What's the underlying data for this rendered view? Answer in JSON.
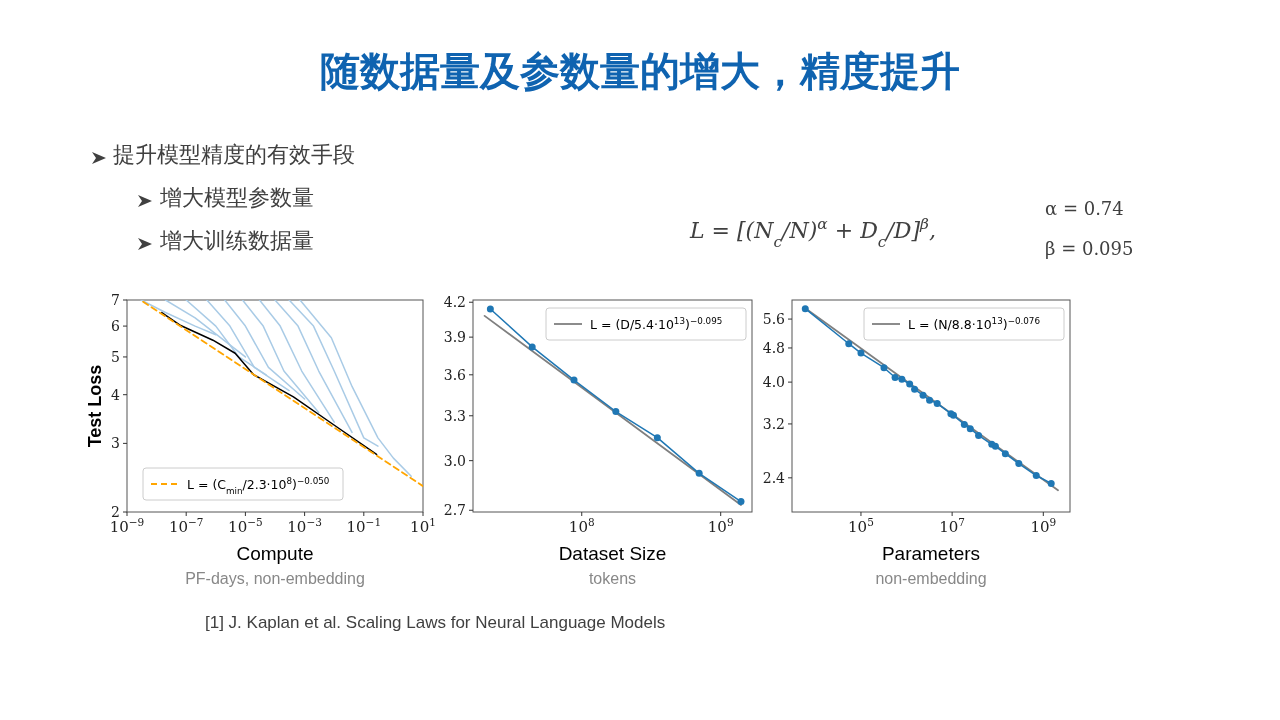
{
  "chart_data": [
    {
      "type": "line",
      "title": "随数据量及参数量的增大，精度提升",
      "annotations": [
        "提升模型精度的有效手段",
        "增大模型参数量",
        "增大训练数据量",
        "L = [(N$_{c}$/N)$^{α}$ + D$_{c}$/D]$^{β}$,",
        "α = 0.74",
        "β = 0.095",
        "[1] J. Kaplan et al. Scaling Laws for Neural Language Models"
      ],
      "xlabel": "Compute\nPF-days, non-embedding",
      "ylabel": "Test Loss",
      "log": "xy",
      "legend": "bottom left",
      "xlim": [
        1e-09,
        10
      ],
      "ylim": [
        2,
        7
      ],
      "xticks": [
        {
          "value": 1e-09,
          "label": "10$^{−9}$"
        },
        {
          "value": 1e-07,
          "label": "10$^{−7}$"
        },
        {
          "value": 1e-05,
          "label": "10$^{−5}$"
        },
        {
          "value": 0.001,
          "label": "10$^{−3}$"
        },
        {
          "value": 0.1,
          "label": "10$^{−1}$"
        },
        {
          "value": 10,
          "label": "10$^{1}$"
        }
      ],
      "yticks": [
        2,
        3,
        4,
        5,
        6,
        7
      ],
      "series": [
        {
          "color": "#a9cbe6",
          "x": [
            3e-09,
            2e-08,
            2e-07,
            1e-06
          ],
          "values": [
            7,
            6.5,
            6.0,
            5.7
          ]
        },
        {
          "color": "#a9cbe6",
          "x": [
            2e-08,
            2e-07,
            2e-06,
            1e-05
          ],
          "values": [
            7,
            6.3,
            5.5,
            5.0
          ]
        },
        {
          "color": "#a9cbe6",
          "x": [
            1e-07,
            1e-06,
            6e-06,
            5e-05
          ],
          "values": [
            7,
            6.0,
            5.0,
            4.5
          ]
        },
        {
          "color": "#a9cbe6",
          "x": [
            5e-07,
            3e-06,
            2e-05,
            0.0003
          ],
          "values": [
            7,
            6.0,
            4.7,
            4.1
          ]
        },
        {
          "color": "#a9cbe6",
          "x": [
            2e-06,
            1e-05,
            6e-05,
            0.001
          ],
          "values": [
            7,
            6.0,
            4.7,
            3.9
          ]
        },
        {
          "color": "#a9cbe6",
          "x": [
            8e-06,
            4e-05,
            0.0002,
            0.003
          ],
          "values": [
            7,
            6.0,
            4.6,
            3.6
          ]
        },
        {
          "color": "#a9cbe6",
          "x": [
            3e-05,
            0.00015,
            0.0008,
            0.01
          ],
          "values": [
            7,
            6.0,
            4.6,
            3.4
          ]
        },
        {
          "color": "#a9cbe6",
          "x": [
            0.0001,
            0.0006,
            0.003,
            0.04
          ],
          "values": [
            7,
            6.0,
            4.6,
            3.2
          ]
        },
        {
          "color": "#a9cbe6",
          "x": [
            0.0003,
            0.002,
            0.01,
            0.1,
            0.3
          ],
          "values": [
            7,
            6.0,
            4.6,
            3.1,
            2.95
          ]
        },
        {
          "color": "#a9cbe6",
          "x": [
            0.0007,
            0.008,
            0.04,
            0.3,
            1,
            4
          ],
          "values": [
            7,
            5.6,
            4.2,
            3.1,
            2.75,
            2.47
          ]
        },
        {
          "color": "#000000",
          "x": [
            1.5e-08,
            6e-08,
            8e-07,
            4.5e-06,
            1.9e-05,
            0.00042,
            0.012,
            0.27
          ],
          "values": [
            6.5,
            6.04,
            5.52,
            5.11,
            4.5,
            3.95,
            3.31,
            2.81
          ]
        },
        {
          "name": "L = (C$_{min}$/2.3·10$^{8}$)$^{−0.050}$",
          "color": "#ffa500",
          "line_style": "dashed",
          "x": [
            3.5e-09,
            10
          ],
          "values": [
            6.93,
            2.33
          ]
        }
      ]
    },
    {
      "type": "line",
      "xlabel": "Dataset Size\ntokens",
      "log": "xy",
      "legend": "top right",
      "marker": "circle",
      "xlim": [
        16500000.0,
        1680000000.0
      ],
      "ylim": [
        2.69,
        4.22
      ],
      "xticks": [
        {
          "value": 100000000.0,
          "label": "10$^{8}$"
        },
        {
          "value": 1000000000.0,
          "label": "10$^{9}$"
        }
      ],
      "yticks": [
        2.7,
        {
          "value": 3,
          "label": "3.0"
        },
        3.3,
        3.6,
        3.9,
        4.2
      ],
      "series": [
        {
          "name": "L = (D/5.4·10$^{13}$)$^{−0.095}$",
          "color": "#7f7f7f",
          "marker": "none",
          "x": [
            20000000.0,
            1400000000.0
          ],
          "values": [
            4.08,
            2.73
          ]
        },
        {
          "color": "#1f77b4",
          "x": [
            22000000.0,
            44000000.0,
            88000000.0,
            176000000.0,
            350000000.0,
            700000000.0,
            1400000000.0
          ],
          "values": [
            4.14,
            3.82,
            3.56,
            3.33,
            3.15,
            2.92,
            2.75
          ]
        }
      ]
    },
    {
      "type": "line",
      "xlabel": "Parameters\nnon-embedding",
      "log": "xy",
      "legend": "top right",
      "marker": "circle",
      "xlim": [
        3070.0,
        3850000000.0
      ],
      "ylim": [
        2.0,
        6.2
      ],
      "xticks": [
        {
          "value": 100000.0,
          "label": "10$^{5}$"
        },
        {
          "value": 10000000.0,
          "label": "10$^{7}$"
        },
        {
          "value": 1000000000.0,
          "label": "10$^{9}$"
        }
      ],
      "yticks": [
        2.4,
        3.2,
        {
          "value": 4,
          "label": "4.0"
        },
        4.8,
        5.6
      ],
      "series": [
        {
          "name": "L = (N/8.8·10$^{13}$)$^{−0.076}$",
          "color": "#7f7f7f",
          "marker": "none",
          "x": [
            6000.0,
            2100000000.0
          ],
          "values": [
            5.93,
            2.245
          ]
        },
        {
          "color": "#1f77b4",
          "x": [
            6000.0,
            54000.0,
            100000.0,
            320000.0,
            560000.0,
            790000.0,
            1170000.0,
            1500000.0,
            2300000.0,
            3200000.0,
            4700000.0,
            9400000.0,
            10700000.0,
            18500000.0,
            25000000.0,
            38000000.0,
            74000000.0,
            89000000.0,
            147000000.0,
            290000000.0,
            700000000.0,
            1490000000.0
          ],
          "values": [
            5.92,
            4.91,
            4.67,
            4.32,
            4.1,
            4.06,
            3.96,
            3.85,
            3.73,
            3.63,
            3.57,
            3.38,
            3.35,
            3.19,
            3.12,
            3.01,
            2.87,
            2.84,
            2.73,
            2.59,
            2.43,
            2.33
          ]
        }
      ]
    }
  ]
}
